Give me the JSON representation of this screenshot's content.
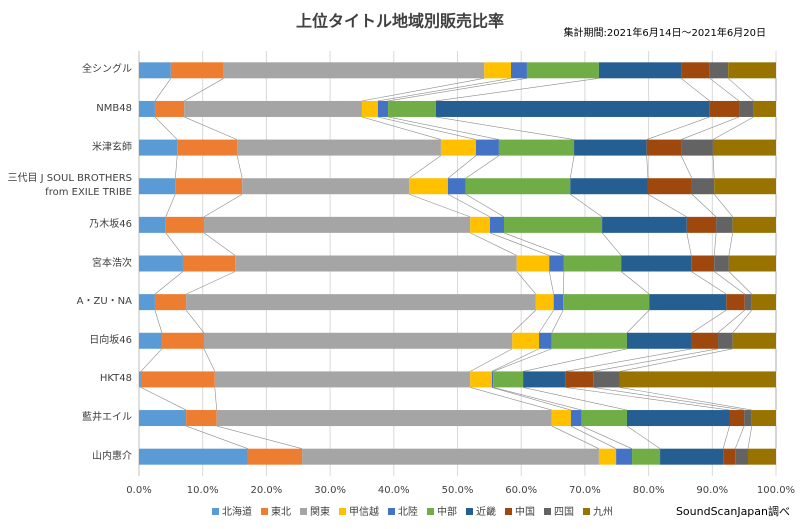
{
  "chart_data": {
    "type": "bar",
    "orientation": "horizontal",
    "stacked": true,
    "title": "上位タイトル地域別販売比率",
    "subtitle": "集計期間:2021年6月14日～2021年6月20日",
    "source": "SoundScanJapan調べ",
    "categories": [
      "全シングル",
      "NMB48",
      "米津玄師",
      "三代目 J SOUL BROTHERS\nfrom EXILE TRIBE",
      "乃木坂46",
      "宮本浩次",
      "A・ZU・NA",
      "日向坂46",
      "HKT48",
      "藍井エイル",
      "山内惠介"
    ],
    "series": [
      {
        "name": "北海道",
        "color": "#5b9bd5",
        "values": [
          5.0,
          2.5,
          6.0,
          5.7,
          4.2,
          6.9,
          2.5,
          3.6,
          0.3,
          7.4,
          17.1
        ]
      },
      {
        "name": "東北",
        "color": "#ed7d31",
        "values": [
          8.3,
          4.6,
          9.4,
          10.5,
          6.0,
          8.2,
          4.9,
          6.6,
          11.6,
          4.8,
          8.5
        ]
      },
      {
        "name": "関東",
        "color": "#a5a5a5",
        "values": [
          40.9,
          27.9,
          32.0,
          26.2,
          41.8,
          44.2,
          54.9,
          48.4,
          40.1,
          52.6,
          46.6
        ]
      },
      {
        "name": "甲信越",
        "color": "#ffc000",
        "values": [
          4.2,
          2.5,
          5.5,
          6.1,
          3.1,
          5.1,
          2.8,
          4.2,
          3.4,
          3.0,
          2.7
        ]
      },
      {
        "name": "北陸",
        "color": "#4472c4",
        "values": [
          2.5,
          1.6,
          3.6,
          2.8,
          2.2,
          2.3,
          1.5,
          2.0,
          0.2,
          1.7,
          2.5
        ]
      },
      {
        "name": "中部",
        "color": "#70ad47",
        "values": [
          11.3,
          7.5,
          11.8,
          16.4,
          15.4,
          9.0,
          13.5,
          11.8,
          4.7,
          7.1,
          4.4
        ]
      },
      {
        "name": "近畿",
        "color": "#255e91",
        "values": [
          12.9,
          43.0,
          11.4,
          12.2,
          13.3,
          11.0,
          12.1,
          10.2,
          6.7,
          16.1,
          9.9
        ]
      },
      {
        "name": "中国",
        "color": "#9e480e",
        "values": [
          4.5,
          4.6,
          5.4,
          6.9,
          4.6,
          3.6,
          2.9,
          4.1,
          4.3,
          2.3,
          1.9
        ]
      },
      {
        "name": "四国",
        "color": "#636363",
        "values": [
          2.9,
          2.3,
          5.0,
          3.5,
          2.6,
          2.3,
          1.1,
          2.3,
          4.2,
          1.2,
          2.0
        ]
      },
      {
        "name": "九州",
        "color": "#997300",
        "values": [
          7.5,
          3.5,
          9.9,
          9.7,
          6.8,
          7.4,
          3.8,
          6.8,
          24.5,
          3.8,
          4.4
        ]
      }
    ],
    "xlim": [
      0,
      100
    ],
    "xticks": [
      {
        "value": 0,
        "label": "0.0%"
      },
      {
        "value": 10,
        "label": "10.0%"
      },
      {
        "value": 20,
        "label": "20.0%"
      },
      {
        "value": 30,
        "label": "30.0%"
      },
      {
        "value": 40,
        "label": "40.0%"
      },
      {
        "value": 50,
        "label": "50.0%"
      },
      {
        "value": 60,
        "label": "60.0%"
      },
      {
        "value": 70,
        "label": "70.0%"
      },
      {
        "value": 80,
        "label": "80.0%"
      },
      {
        "value": 90,
        "label": "90.0%"
      },
      {
        "value": 100,
        "label": "100.0%"
      }
    ],
    "grid": true,
    "legend": "bottom"
  }
}
